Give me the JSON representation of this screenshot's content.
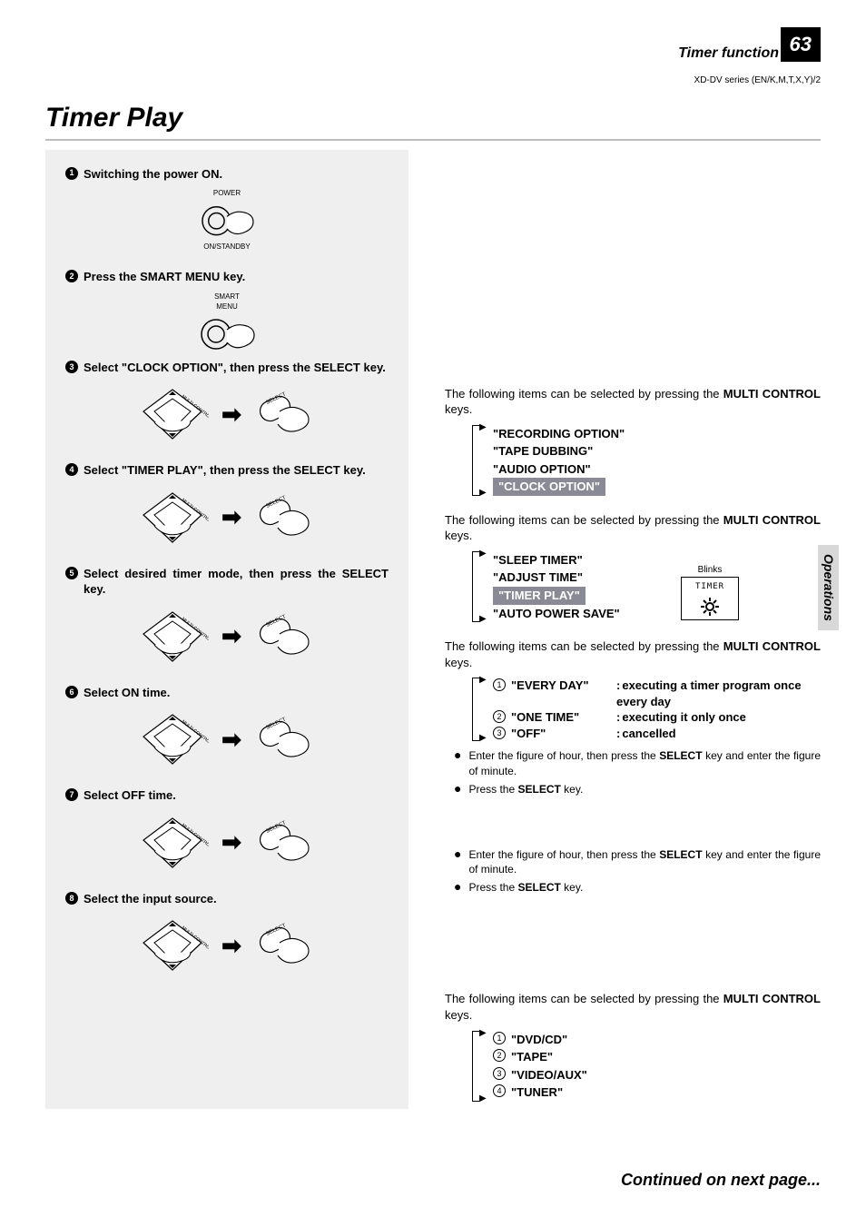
{
  "header": {
    "section": "Timer function",
    "page_number": "63",
    "series_note": "XD-DV series (EN/K,M,T,X,Y)/2",
    "title": "Timer Play",
    "side_tab": "Operations",
    "footer": "Continued on next page..."
  },
  "colors": {
    "page_bg": "#ffffff",
    "left_col_bg": "#efefef",
    "highlight_bg": "#8a8a97",
    "highlight_fg": "#ffffff",
    "title_underline": "#bdbdbd",
    "side_tab_bg": "#d8d8d8"
  },
  "steps": [
    {
      "n": "1",
      "text": "Switching the power ON.",
      "illus_top": "POWER",
      "illus_bottom": "ON/STANDBY",
      "kind": "single"
    },
    {
      "n": "2",
      "text": "Press the SMART MENU key.",
      "illus_top": "SMART\nMENU",
      "kind": "single"
    },
    {
      "n": "3",
      "text": "Select \"CLOCK OPTION\", then press the SELECT key.",
      "kind": "dual"
    },
    {
      "n": "4",
      "text": "Select \"TIMER PLAY\", then press the SELECT key.",
      "kind": "dual"
    },
    {
      "n": "5",
      "text": "Select desired timer mode, then press the SELECT key.",
      "kind": "dual"
    },
    {
      "n": "6",
      "text": "Select ON time.",
      "kind": "dual"
    },
    {
      "n": "7",
      "text": "Select OFF time.",
      "kind": "dual"
    },
    {
      "n": "8",
      "text": "Select the input source.",
      "kind": "dual"
    }
  ],
  "right": {
    "intro_pre": "The following items can be selected by pressing the ",
    "intro_bold": "MULTI CONTROL",
    "intro_post": " keys.",
    "menu1": [
      {
        "t": "\"RECORDING OPTION\"",
        "hl": false
      },
      {
        "t": "\"TAPE DUBBING\"",
        "hl": false
      },
      {
        "t": "\"AUDIO OPTION\"",
        "hl": false
      },
      {
        "t": "\"CLOCK OPTION\"",
        "hl": true
      }
    ],
    "menu2": [
      {
        "t": "\"SLEEP TIMER\"",
        "hl": false
      },
      {
        "t": "\"ADJUST TIME\"",
        "hl": false
      },
      {
        "t": "\"TIMER PLAY\"",
        "hl": true
      },
      {
        "t": "\"AUTO POWER SAVE\"",
        "hl": false
      }
    ],
    "timer_box": {
      "blinks": "Blinks",
      "label": "TIMER"
    },
    "modes": [
      {
        "n": "1",
        "name": "\"EVERY DAY\"",
        "desc": "executing a timer program once every day"
      },
      {
        "n": "2",
        "name": "\"ONE TIME\"",
        "desc": "executing it only once"
      },
      {
        "n": "3",
        "name": "\"OFF\"",
        "desc": "cancelled"
      }
    ],
    "bullets_on": [
      {
        "pre": "Enter the figure of hour, then press the ",
        "bold": "SELECT",
        "post": " key and enter the figure of minute."
      },
      {
        "pre": "Press the ",
        "bold": "SELECT",
        "post": " key."
      }
    ],
    "bullets_off": [
      {
        "pre": "Enter the figure of hour, then press the ",
        "bold": "SELECT",
        "post": " key and enter the figure of minute."
      },
      {
        "pre": "Press the ",
        "bold": "SELECT",
        "post": " key."
      }
    ],
    "sources": [
      {
        "n": "1",
        "t": "\"DVD/CD\""
      },
      {
        "n": "2",
        "t": "\"TAPE\""
      },
      {
        "n": "3",
        "t": "\"VIDEO/AUX\""
      },
      {
        "n": "4",
        "t": "\"TUNER\""
      }
    ]
  }
}
